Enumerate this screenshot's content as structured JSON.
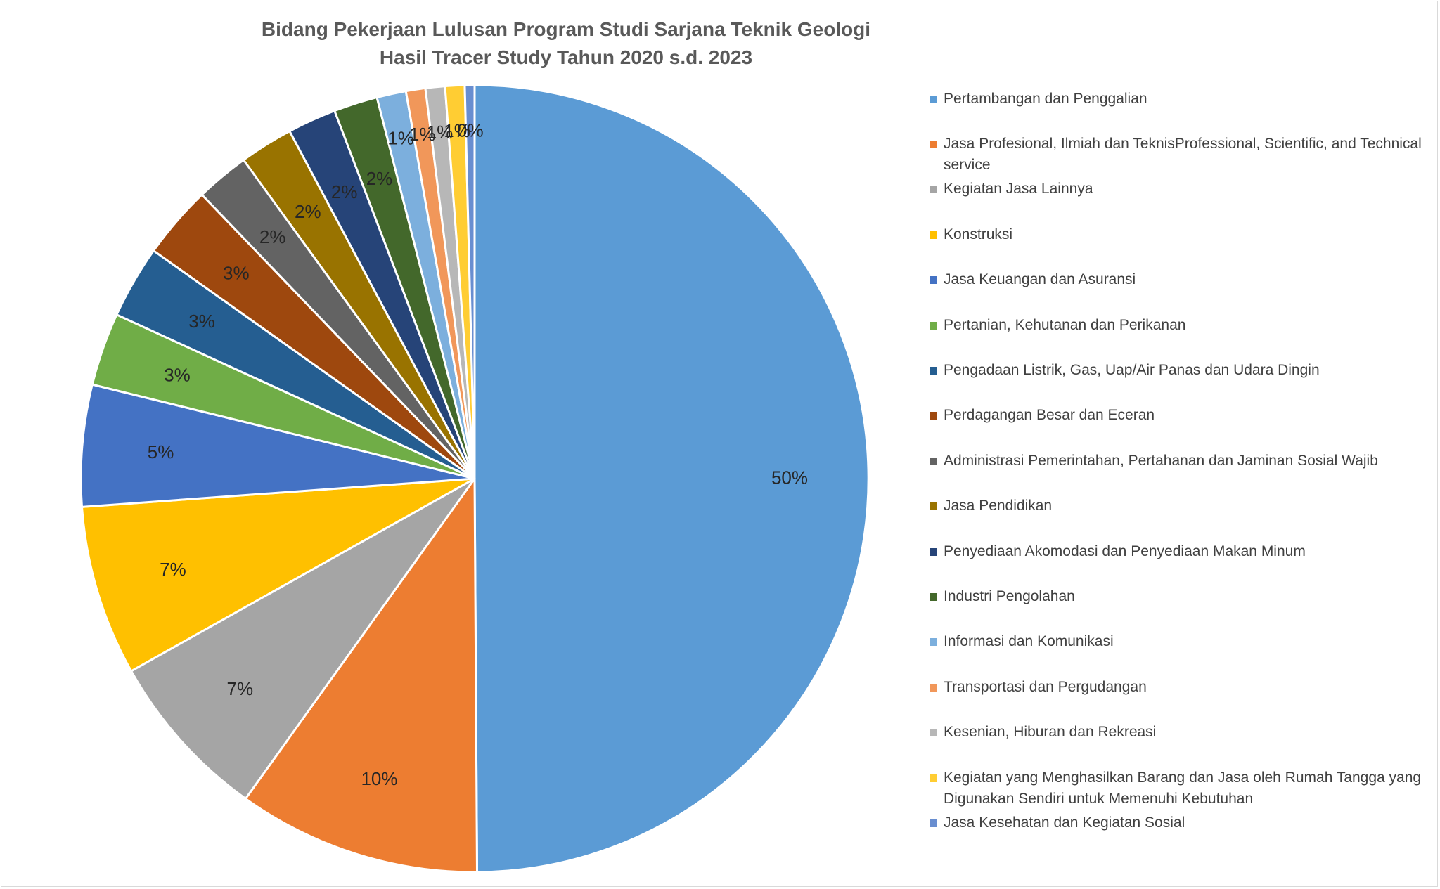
{
  "chart_data": {
    "type": "pie",
    "title_lines": [
      "Bidang Pekerjaan Lulusan Program Studi Sarjana Teknik Geologi",
      "Hasil Tracer Study Tahun 2020 s.d. 2023"
    ],
    "legend_position": "right",
    "slices": [
      {
        "name": "Pertambangan dan Penggalian",
        "value": 50,
        "label": "50%",
        "color": "#5B9BD5"
      },
      {
        "name": "Jasa Profesional, Ilmiah dan TeknisProfessional, Scientific, and Technical service",
        "value": 10,
        "label": "10%",
        "color": "#ED7D31"
      },
      {
        "name": "Kegiatan Jasa Lainnya",
        "value": 7,
        "label": "7%",
        "color": "#A5A5A5"
      },
      {
        "name": "Konstruksi",
        "value": 7,
        "label": "7%",
        "color": "#FFC000"
      },
      {
        "name": "Jasa Keuangan dan Asuransi",
        "value": 5,
        "label": "5%",
        "color": "#4472C4"
      },
      {
        "name": "Pertanian, Kehutanan dan Perikanan",
        "value": 3,
        "label": "3%",
        "color": "#70AD47"
      },
      {
        "name": "Pengadaan Listrik, Gas, Uap/Air Panas dan Udara Dingin",
        "value": 3,
        "label": "3%",
        "color": "#255E91"
      },
      {
        "name": "Perdagangan Besar dan Eceran",
        "value": 3,
        "label": "3%",
        "color": "#9E480E"
      },
      {
        "name": "Administrasi Pemerintahan, Pertahanan dan Jaminan Sosial Wajib",
        "value": 2.2,
        "label": "2%",
        "color": "#636363"
      },
      {
        "name": "Jasa Pendidikan",
        "value": 2.2,
        "label": "2%",
        "color": "#997300"
      },
      {
        "name": "Penyediaan Akomodasi dan Penyediaan Makan Minum",
        "value": 2,
        "label": "2%",
        "color": "#264478"
      },
      {
        "name": "Industri Pengolahan",
        "value": 1.8,
        "label": "2%",
        "color": "#43682B"
      },
      {
        "name": "Informasi dan Komunikasi",
        "value": 1.2,
        "label": "1%",
        "color": "#7CAFDD"
      },
      {
        "name": "Transportasi dan Pergudangan",
        "value": 0.8,
        "label": "1%",
        "color": "#F1975A"
      },
      {
        "name": "Kesenian, Hiburan dan Rekreasi",
        "value": 0.8,
        "label": "1%",
        "color": "#B7B7B7"
      },
      {
        "name": "Kegiatan yang Menghasilkan Barang dan Jasa oleh Rumah Tangga yang Digunakan Sendiri untuk Memenuhi Kebutuhan",
        "value": 0.8,
        "label": "1%",
        "color": "#FFCD33"
      },
      {
        "name": "Jasa Kesehatan dan Kegiatan Sosial",
        "value": 0.4,
        "label": "0%",
        "color": "#698ED0"
      }
    ]
  }
}
